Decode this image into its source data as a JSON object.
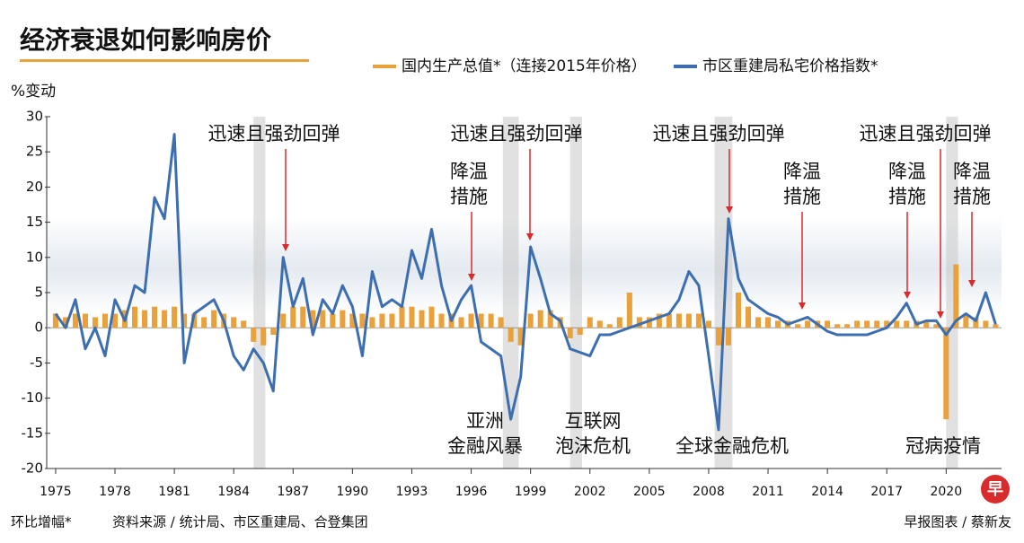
{
  "chart_data": {
    "type": "combo",
    "title": "经济衰退如何影响房价",
    "y_label": "%变动",
    "footnote": "环比增幅*",
    "source": "资料来源 / 统计局、市区重建局、合登集团",
    "credit": "早报图表 / 蔡新友",
    "xlim": [
      1974.55,
      2022.8
    ],
    "xticks": [
      1975,
      1978,
      1981,
      1984,
      1987,
      1990,
      1993,
      1996,
      1999,
      2002,
      2005,
      2008,
      2011,
      2014,
      2017,
      2020
    ],
    "ylim": [
      -20,
      30
    ],
    "yticks": [
      -20,
      -15,
      -10,
      -5,
      0,
      5,
      10,
      15,
      20,
      25,
      30
    ],
    "recession_bands": [
      [
        1985.0,
        1985.6
      ],
      [
        1997.6,
        1998.4
      ],
      [
        2001.0,
        2001.6
      ],
      [
        2008.3,
        2009.2
      ],
      [
        2020.0,
        2020.6
      ]
    ],
    "x": [
      1975,
      1975.5,
      1976,
      1976.5,
      1977,
      1977.5,
      1978,
      1978.5,
      1979,
      1979.5,
      1980,
      1980.5,
      1981,
      1981.5,
      1982,
      1982.5,
      1983,
      1983.5,
      1984,
      1984.5,
      1985,
      1985.5,
      1986,
      1986.5,
      1987,
      1987.5,
      1988,
      1988.5,
      1989,
      1989.5,
      1990,
      1990.5,
      1991,
      1991.5,
      1992,
      1992.5,
      1993,
      1993.5,
      1994,
      1994.5,
      1995,
      1995.5,
      1996,
      1996.5,
      1997,
      1997.5,
      1998,
      1998.5,
      1999,
      1999.5,
      2000,
      2000.5,
      2001,
      2001.5,
      2002,
      2002.5,
      2003,
      2003.5,
      2004,
      2004.5,
      2005,
      2005.5,
      2006,
      2006.5,
      2007,
      2007.5,
      2008,
      2008.5,
      2009,
      2009.5,
      2010,
      2010.5,
      2011,
      2011.5,
      2012,
      2012.5,
      2013,
      2013.5,
      2014,
      2014.5,
      2015,
      2015.5,
      2016,
      2016.5,
      2017,
      2017.5,
      2018,
      2018.5,
      2019,
      2019.5,
      2020,
      2020.5,
      2021,
      2021.5,
      2022,
      2022.5
    ],
    "series": [
      {
        "name": "国内生产总值*（连接2015年价格）",
        "type": "bar",
        "color": "#e9a13b",
        "values": [
          2,
          1.5,
          2,
          2,
          1.5,
          2,
          2,
          2.5,
          3,
          2.5,
          3,
          2.5,
          3,
          2,
          2,
          1.5,
          2.5,
          2,
          1.5,
          1,
          -2,
          -2.5,
          -1,
          2,
          3,
          3,
          2.5,
          2.5,
          2,
          2.5,
          2,
          2,
          1.5,
          2,
          2,
          3,
          3,
          2.5,
          3,
          2,
          2,
          1.5,
          2,
          2,
          2,
          1.5,
          -2,
          -2.5,
          2,
          2.5,
          2.5,
          1.5,
          -1.5,
          -1,
          1.5,
          1,
          0.5,
          1.5,
          5,
          1.5,
          1.5,
          2,
          2,
          2,
          2,
          2,
          1,
          -2.5,
          -2.5,
          5,
          3,
          1.5,
          1.5,
          1,
          1,
          0.5,
          1,
          1,
          1,
          0.5,
          0.5,
          1,
          1,
          1,
          1,
          1,
          1,
          1,
          1,
          0.5,
          -13,
          9,
          2,
          1.5,
          1,
          0.5
        ]
      },
      {
        "name": "市区重建局私宅价格指数*",
        "type": "line",
        "color": "#3d6fb0",
        "values": [
          2,
          0,
          4,
          -3,
          0,
          -4,
          4,
          1,
          6,
          5,
          18.5,
          15.5,
          27.5,
          -5,
          2,
          3,
          4,
          1,
          -4,
          -6,
          -3,
          -5,
          -9,
          10,
          3,
          7,
          -1,
          4,
          2,
          6,
          3,
          -4,
          8,
          3,
          4,
          3,
          11,
          7,
          14,
          6,
          1,
          4,
          6,
          -2,
          -3,
          -4,
          -13,
          -7,
          11.5,
          7,
          2,
          1,
          -3,
          -3.5,
          -4,
          -1,
          -1,
          -0.5,
          0,
          0.5,
          1,
          1.5,
          2,
          4,
          8,
          6,
          -4,
          -14.5,
          15.5,
          7,
          4,
          3,
          2,
          1.5,
          0.5,
          1,
          1.5,
          0.5,
          -0.5,
          -1,
          -1,
          -1,
          -1,
          -0.5,
          0,
          1.5,
          3.5,
          0.5,
          1,
          1,
          -1,
          1,
          2,
          1,
          5,
          0.5
        ]
      }
    ],
    "annotations": [
      {
        "lines": [
          "迅速且强劲回弹"
        ]
      },
      {
        "lines": [
          "降温",
          "措施"
        ]
      },
      {
        "lines": [
          "迅速且强劲回弹"
        ]
      },
      {
        "lines": [
          "迅速且强劲回弹"
        ]
      },
      {
        "lines": [
          "降温",
          "措施"
        ]
      },
      {
        "lines": [
          "迅速且强劲回弹"
        ]
      },
      {
        "lines": [
          "降温",
          "措施"
        ]
      },
      {
        "lines": [
          "降温",
          "措施"
        ]
      },
      {
        "lines": [
          "亚洲",
          "金融风暴"
        ]
      },
      {
        "lines": [
          "互联网",
          "泡沫危机"
        ]
      },
      {
        "lines": [
          "全球金融危机"
        ]
      },
      {
        "lines": [
          "冠病疫情"
        ]
      }
    ]
  }
}
